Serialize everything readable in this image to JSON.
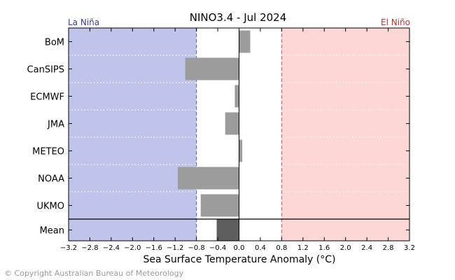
{
  "chart_data": {
    "type": "bar",
    "orientation": "horizontal",
    "title": "NINO3.4 - Jul 2024",
    "xlabel": "Sea Surface Temperature Anomaly (°C)",
    "ylabel": "",
    "xlim": [
      -3.2,
      3.2
    ],
    "xticks": [
      "−3.2",
      "−2.8",
      "−2.4",
      "−2.0",
      "−1.6",
      "−1.2",
      "−0.8",
      "−0.4",
      "0.0",
      "0.4",
      "0.8",
      "1.2",
      "1.6",
      "2.0",
      "2.4",
      "2.8",
      "3.2"
    ],
    "categories": [
      "BoM",
      "CanSIPS",
      "ECMWF",
      "JMA",
      "METEO",
      "NOAA",
      "UKMO"
    ],
    "values": [
      0.21,
      -1.01,
      -0.08,
      -0.26,
      0.06,
      -1.15,
      -0.72
    ],
    "mean": {
      "label": "Mean",
      "value": -0.42
    },
    "thresholds": {
      "la_nina": -0.8,
      "el_nino": 0.8
    },
    "regions": {
      "la_nina_label": "La Niña",
      "el_nino_label": "El Niño"
    },
    "colors": {
      "la_nina_fill": "#c0c3ea",
      "el_nino_fill": "#fdd6d6",
      "bar": "#9c9c9c",
      "mean_bar": "#5e5e5e",
      "la_nina_text": "#3a3a9a",
      "el_nino_text": "#c03030",
      "la_nina_line": "#6a6ac8",
      "el_nino_line": "#d06a6a"
    },
    "grid": "horizontal dotted separators between models"
  },
  "footer": {
    "copyright": "© Copyright Australian Bureau of Meteorology"
  }
}
